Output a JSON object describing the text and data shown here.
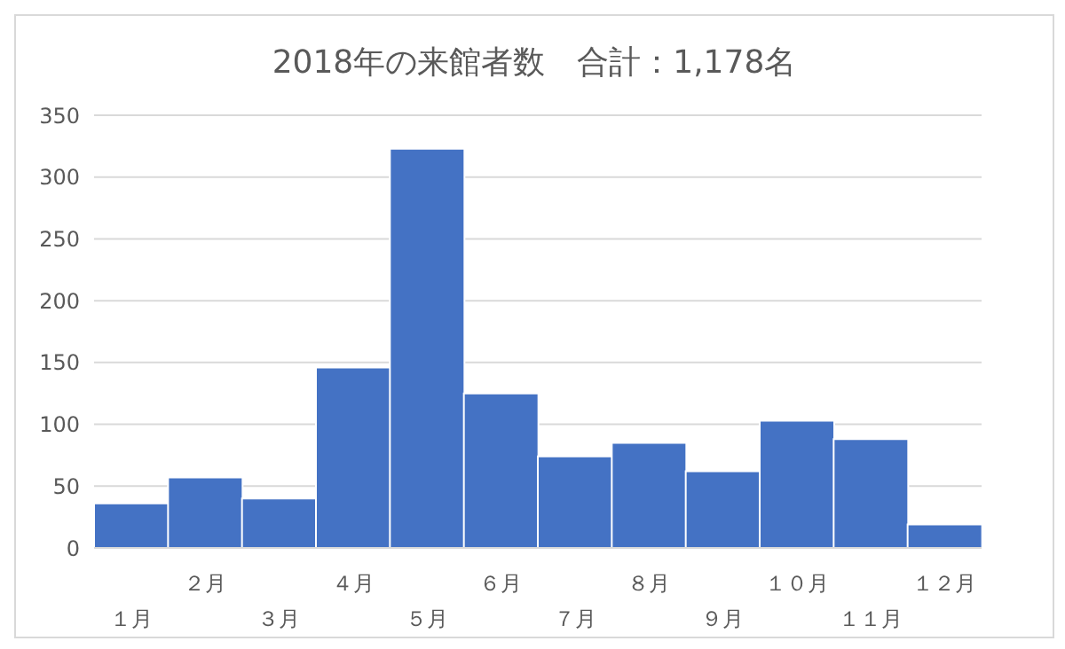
{
  "chart_data": {
    "type": "bar",
    "title": "2018年の来館者数　合計：1,178名",
    "categories": [
      "１月",
      "２月",
      "３月",
      "４月",
      "５月",
      "６月",
      "７月",
      "８月",
      "９月",
      "１０月",
      "１１月",
      "１２月"
    ],
    "values": [
      36,
      57,
      40,
      146,
      323,
      125,
      74,
      85,
      62,
      103,
      88,
      19
    ],
    "color": "#4472c4",
    "ylim": [
      0,
      350
    ],
    "yticks": [
      0,
      50,
      100,
      150,
      200,
      250,
      300,
      350
    ],
    "grid": "y",
    "legend": false
  }
}
